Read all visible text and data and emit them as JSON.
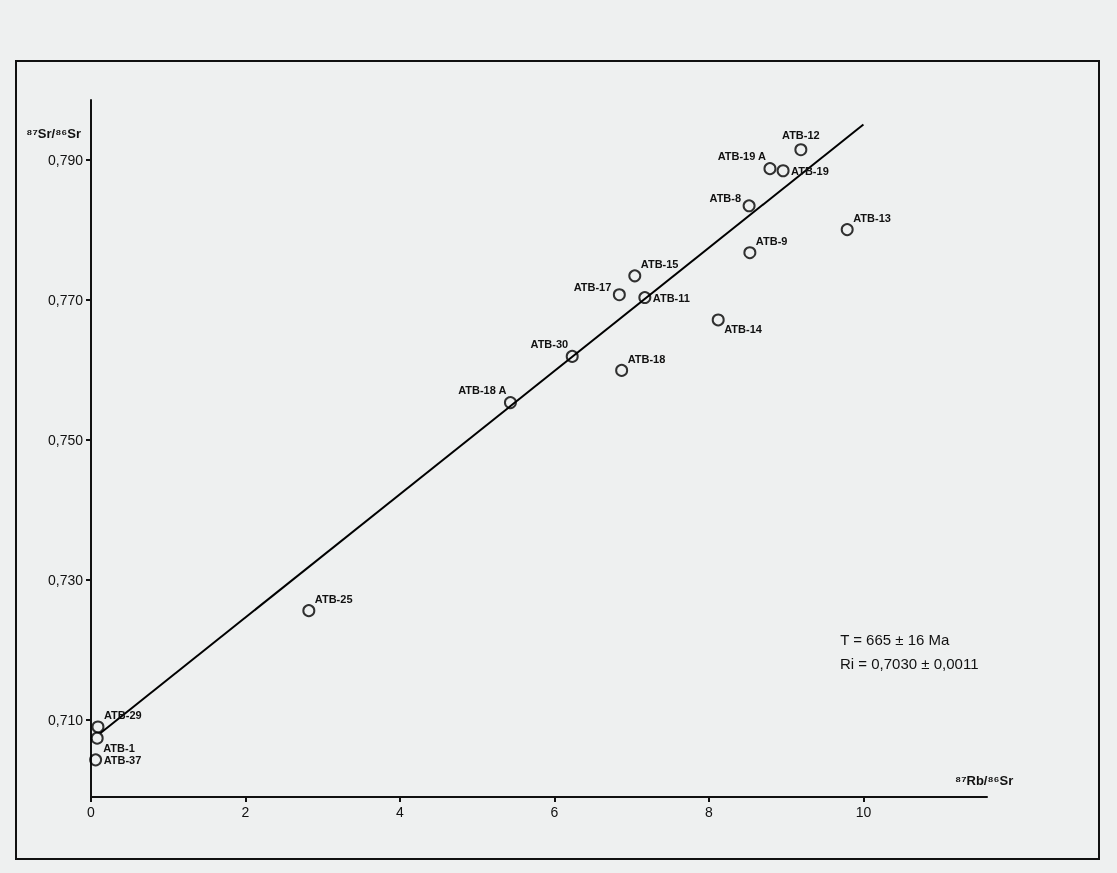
{
  "chart_data": {
    "type": "scatter",
    "xlabel": "⁸⁷Rb/⁸⁶Sr",
    "ylabel": "⁸⁷Sr/⁸⁶Sr",
    "x": [
      9.19,
      8.79,
      8.96,
      8.52,
      9.79,
      8.53,
      7.04,
      6.84,
      7.17,
      8.12,
      6.23,
      6.87,
      5.43,
      2.82,
      0.09,
      0.08,
      0.06
    ],
    "series": [
      {
        "color": "#000000",
        "values": [
          0.7914,
          0.7887,
          0.7884,
          0.7834,
          0.78,
          0.7767,
          0.7734,
          0.7707,
          0.7703,
          0.7671,
          0.7619,
          0.7599,
          0.7553,
          0.7256,
          0.709,
          0.7074,
          0.7043
        ]
      },
      {
        "type": "line",
        "marker": "none",
        "color": "#000000",
        "x": [
          0.12,
          10.0
        ],
        "values": [
          0.7081,
          0.795
        ]
      }
    ],
    "xlim": [
      0,
      11.6
    ],
    "ylim": [
      0.699,
      0.7985
    ],
    "xticks": [
      0,
      2,
      4,
      6,
      8,
      10
    ],
    "yticks": [
      {
        "value": 0.71,
        "label": "0,710"
      },
      {
        "value": 0.73,
        "label": "0,730"
      },
      {
        "value": 0.75,
        "label": "0,750"
      },
      {
        "value": 0.77,
        "label": "0,770"
      },
      {
        "value": 0.79,
        "label": "0,790"
      }
    ],
    "marker": "circle",
    "grid": false,
    "annotations": [
      {
        "text": "ATB-12",
        "x": 9.19,
        "y": 0.7914
      },
      {
        "text": "ATB-19 A",
        "x": 8.79,
        "y": 0.7887
      },
      {
        "text": "ATB-19",
        "x": 8.96,
        "y": 0.7884
      },
      {
        "text": "ATB-8",
        "x": 8.52,
        "y": 0.7834
      },
      {
        "text": "ATB-13",
        "x": 9.79,
        "y": 0.78
      },
      {
        "text": "ATB-9",
        "x": 8.53,
        "y": 0.7767
      },
      {
        "text": "ATB-15",
        "x": 7.04,
        "y": 0.7734
      },
      {
        "text": "ATB-17",
        "x": 6.84,
        "y": 0.7707
      },
      {
        "text": "ATB-11",
        "x": 7.17,
        "y": 0.7703
      },
      {
        "text": "ATB-14",
        "x": 8.12,
        "y": 0.7671
      },
      {
        "text": "ATB-30",
        "x": 6.23,
        "y": 0.7619
      },
      {
        "text": "ATB-18",
        "x": 6.87,
        "y": 0.7599
      },
      {
        "text": "ATB-18 A",
        "x": 5.43,
        "y": 0.7553
      },
      {
        "text": "ATB-25",
        "x": 2.82,
        "y": 0.7256
      },
      {
        "text": "ATB-29",
        "x": 0.09,
        "y": 0.709
      },
      {
        "text": "ATB-1",
        "x": 0.08,
        "y": 0.7074
      },
      {
        "text": "ATB-37",
        "x": 0.06,
        "y": 0.7043
      },
      "T = 665 ± 16 Ma",
      "Ri = 0,7030 ± 0,0011"
    ]
  }
}
